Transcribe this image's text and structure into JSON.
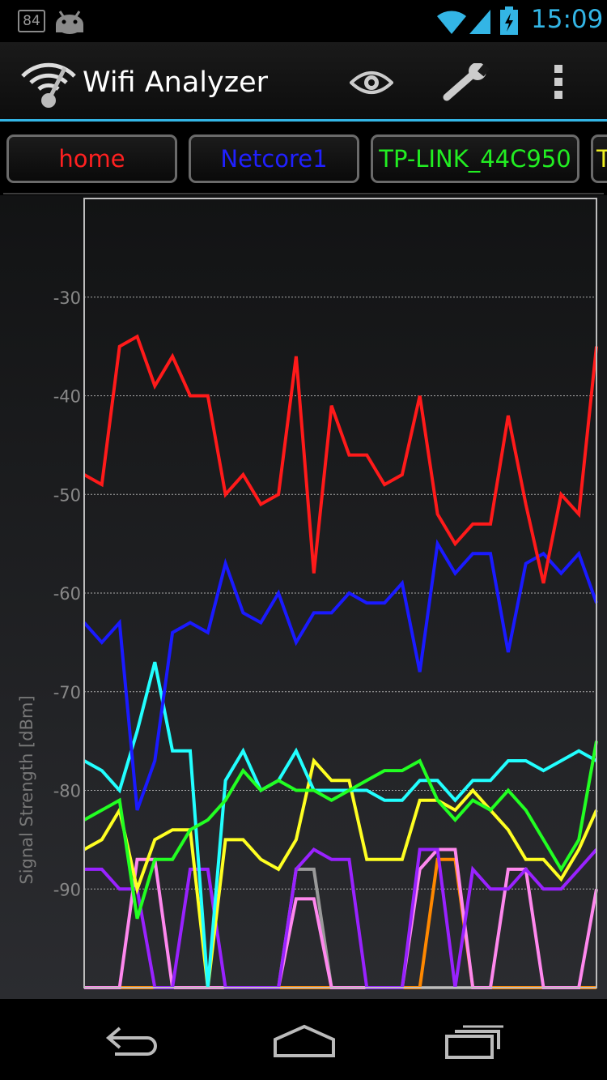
{
  "status_bar": {
    "notification_count": "84",
    "time": "15:09",
    "icons": [
      "notification-icon",
      "android-icon",
      "wifi-icon",
      "signal-icon",
      "battery-charging-icon"
    ]
  },
  "action_bar": {
    "title": "Wifi Analyzer",
    "icons": [
      "wifi-analyzer-app-icon",
      "eye-icon",
      "wrench-icon",
      "overflow-menu-icon"
    ]
  },
  "ssid_tabs": [
    {
      "label": "home",
      "color": "#ff2020"
    },
    {
      "label": "Netcore1",
      "color": "#2020ff"
    },
    {
      "label": "TP-LINK_44C950",
      "color": "#22ee22"
    },
    {
      "label": "T",
      "color": "#eeee22"
    }
  ],
  "chart_data": {
    "type": "line",
    "ylabel": "Signal Strength [dBm]",
    "yticks": [
      -30,
      -40,
      -50,
      -60,
      -70,
      -80,
      -90
    ],
    "ylim": [
      -100,
      -20
    ],
    "x_count": 31,
    "grid": true,
    "series": [
      {
        "color": "#ff1a1a",
        "values": [
          -48,
          -49,
          -35,
          -34,
          -39,
          -36,
          -40,
          -40,
          -50,
          -48,
          -51,
          -50,
          -36,
          -58,
          -41,
          -46,
          -46,
          -49,
          -48,
          -40,
          -52,
          -55,
          -53,
          -53,
          -42,
          -51,
          -59,
          -50,
          -52,
          -35
        ]
      },
      {
        "color": "#1a1aff",
        "values": [
          -63,
          -65,
          -63,
          -82,
          -77,
          -64,
          -63,
          -64,
          -57,
          -62,
          -63,
          -60,
          -65,
          -62,
          -62,
          -60,
          -61,
          -61,
          -59,
          -68,
          -55,
          -58,
          -56,
          -56,
          -66,
          -57,
          -56,
          -58,
          -56,
          -61
        ]
      },
      {
        "color": "#22ff22",
        "values": [
          -83,
          -82,
          -81,
          -93,
          -87,
          -87,
          -84,
          -83,
          -81,
          -78,
          -80,
          -79,
          -80,
          -80,
          -81,
          -80,
          -79,
          -78,
          -78,
          -77,
          -81,
          -83,
          -81,
          -82,
          -80,
          -82,
          -85,
          -88,
          -85,
          -75
        ]
      },
      {
        "color": "#22ffff",
        "values": [
          -77,
          -78,
          -80,
          -74,
          -67,
          -76,
          -76,
          -100,
          -79,
          -76,
          -80,
          -79,
          -76,
          -80,
          -80,
          -80,
          -80,
          -81,
          -81,
          -79,
          -79,
          -81,
          -79,
          -79,
          -77,
          -77,
          -78,
          -77,
          -76,
          -77
        ]
      },
      {
        "color": "#ffff22",
        "values": [
          -86,
          -85,
          -82,
          -90,
          -85,
          -84,
          -84,
          -100,
          -85,
          -85,
          -87,
          -88,
          -85,
          -77,
          -79,
          -79,
          -87,
          -87,
          -87,
          -81,
          -81,
          -82,
          -80,
          -82,
          -84,
          -87,
          -87,
          -89,
          -86,
          -82
        ]
      },
      {
        "color": "#9922ff",
        "values": [
          -88,
          -88,
          -90,
          -90,
          -100,
          -100,
          -88,
          -88,
          -100,
          -100,
          -100,
          -100,
          -88,
          -86,
          -87,
          -87,
          -100,
          -100,
          -100,
          -86,
          -86,
          -100,
          -88,
          -90,
          -90,
          -88,
          -90,
          -90,
          -88,
          -86
        ]
      },
      {
        "color": "#ff88ee",
        "values": [
          -100,
          -100,
          -100,
          -87,
          -87,
          -100,
          -100,
          -100,
          -100,
          -100,
          -100,
          -100,
          -91,
          -91,
          -100,
          -100,
          -100,
          -100,
          -100,
          -88,
          -86,
          -86,
          -100,
          -100,
          -88,
          -88,
          -100,
          -100,
          -100,
          -90
        ]
      },
      {
        "color": "#ff8800",
        "values": [
          -100,
          -100,
          -100,
          -100,
          -100,
          -100,
          -100,
          -100,
          -100,
          -100,
          -100,
          -100,
          -100,
          -100,
          -100,
          -100,
          -100,
          -100,
          -100,
          -100,
          -87,
          -87,
          -100,
          -100,
          -100,
          -100,
          -100,
          -100,
          -100,
          -100
        ]
      },
      {
        "color": "#9a9a9a",
        "values": [
          -100,
          -100,
          -100,
          -100,
          -100,
          -100,
          -100,
          -100,
          -100,
          -100,
          -100,
          -100,
          -88,
          -88,
          -100,
          -100,
          -100,
          -100,
          -100,
          -100,
          -100,
          -100,
          -100,
          -100,
          -100,
          -100,
          -100,
          -100,
          -100,
          -100
        ]
      }
    ]
  },
  "nav_bar": {
    "icons": [
      "back-icon",
      "home-icon",
      "recent-apps-icon"
    ]
  }
}
